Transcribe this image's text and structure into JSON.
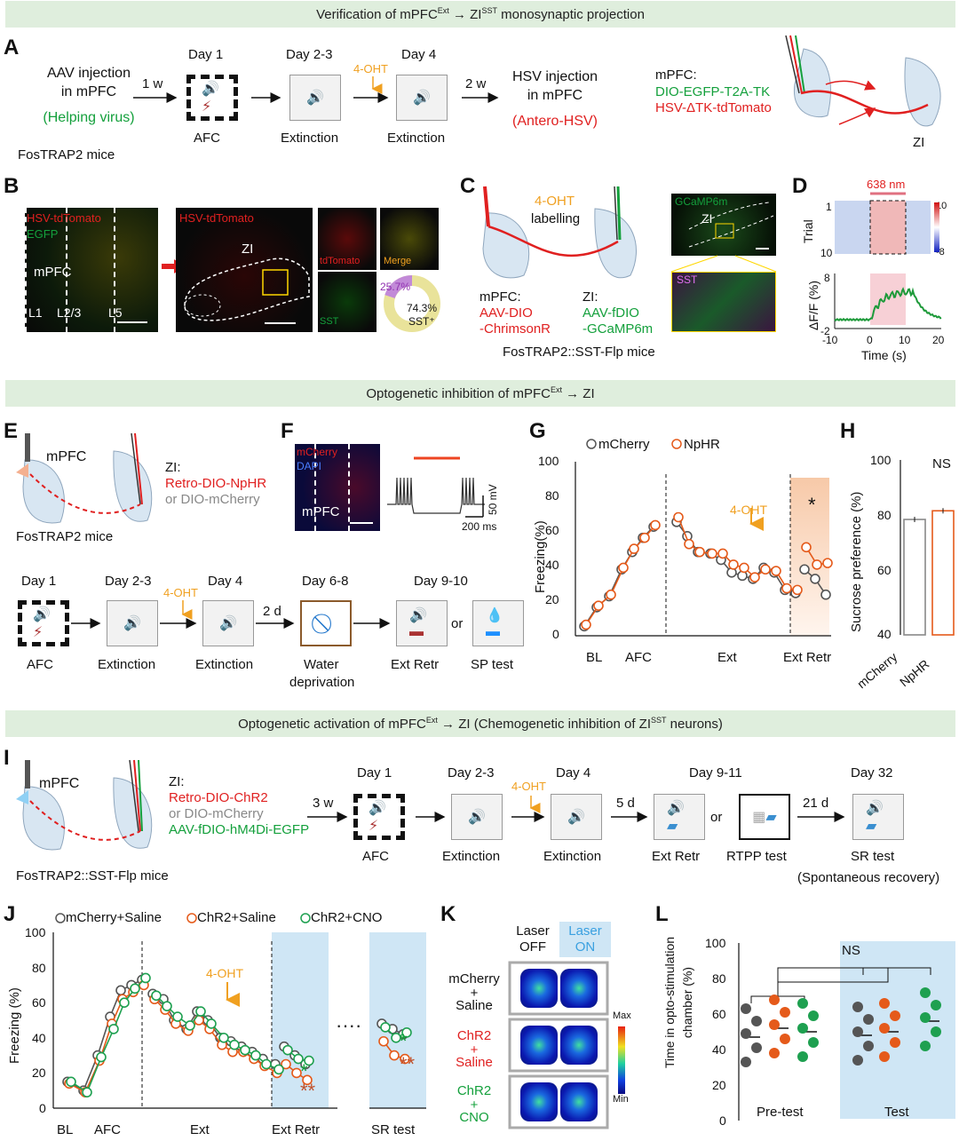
{
  "banners": {
    "top": "Verification of mPFC^Ext → ZI^SST monosynaptic projection",
    "middle": "Optogenetic inhibition of mPFC^Ext → ZI",
    "bottom": "Optogenetic activation of mPFC^Ext → ZI (Chemogenetic inhibition of ZI^SST neurons)"
  },
  "panel_letters": [
    "A",
    "B",
    "C",
    "D",
    "E",
    "F",
    "G",
    "H",
    "I",
    "J",
    "K",
    "L"
  ],
  "panelA": {
    "aav": "AAV injection",
    "in_mpfc": "in mPFC",
    "helping": "(Helping virus)",
    "mice": "FosTRAP2 mice",
    "w1": "1 w",
    "day1": "Day 1",
    "afc": "AFC",
    "day23": "Day 2-3",
    "ext1": "Extinction",
    "oht": "4-OHT",
    "day4": "Day 4",
    "ext2": "Extinction",
    "w2": "2 w",
    "hsv": "HSV injection",
    "hsv_in": "in mPFC",
    "antero": "(Antero-HSV)",
    "mpfc": "mPFC:",
    "dio": "DIO-EGFP-T2A-TK",
    "hsvtk": "HSV-ΔTK-tdTomato",
    "zi": "ZI"
  },
  "panelB": {
    "hsv_td": "HSV-tdTomato",
    "egfp": "EGFP",
    "mpfc": "mPFC",
    "l1": "L1",
    "l23": "L2/3",
    "l5": "L5",
    "hsv_td2": "HSV-tdTomato",
    "zi": "ZI",
    "tdtomato": "tdTomato",
    "merge": "Merge",
    "sst": "SST",
    "pct_a": "25.7%",
    "pct_b": "74.3%",
    "sst_plus": "SST⁺"
  },
  "panelC": {
    "oht": "4-OHT",
    "labelling": "labelling",
    "mpfc": "mPFC:",
    "aav1": "AAV-DIO",
    "aav2": "-ChrimsonR",
    "zi": "ZI:",
    "fdio1": "AAV-fDIO",
    "fdio2": "-GCaMP6m",
    "mice": "FosTRAP2::SST-Flp mice",
    "gcamp": "GCaMP6m",
    "zi2": "ZI",
    "sst": "SST"
  },
  "panelD": {
    "nm": "638 nm",
    "trial": "Trial",
    "t1": "1",
    "t10": "10",
    "cmax": "10",
    "cmin": "-8",
    "ylabel": "ΔF/F (%)",
    "y8": "8",
    "ym2": "-2",
    "xlabel": "Time (s)",
    "xticks": [
      "-10",
      "0",
      "10",
      "20"
    ]
  },
  "panelE": {
    "mpfc": "mPFC",
    "zi": "ZI:",
    "retro": "Retro-DIO-NpHR",
    "or_dio": "or DIO-mCherry",
    "mice": "FosTRAP2 mice",
    "day1": "Day 1",
    "day23": "Day 2-3",
    "day4": "Day 4",
    "day68": "Day 6-8",
    "day910": "Day 9-10",
    "oht": "4-OHT",
    "d2": "2 d",
    "afc": "AFC",
    "ext1": "Extinction",
    "ext2": "Extinction",
    "water": "Water",
    "depr": "deprivation",
    "extretr": "Ext Retr",
    "or": "or",
    "sp": "SP test"
  },
  "panelF": {
    "mcherry": "mCherry",
    "dapi": "DAPI",
    "mpfc": "mPFC",
    "mv": "50 mV",
    "ms": "200 ms"
  },
  "panelG": {
    "legend": [
      "mCherry",
      "NpHR"
    ],
    "ylabel": "Freezing(%)",
    "yticks": [
      "0",
      "20",
      "40",
      "60",
      "80",
      "100"
    ],
    "xlabels": [
      "BL",
      "AFC",
      "Ext",
      "Ext Retr"
    ],
    "oht": "4-OHT",
    "star": "*"
  },
  "panelH": {
    "ylabel": "Sucrose preference (%)",
    "yticks": [
      "40",
      "60",
      "80",
      "100"
    ],
    "ns": "NS",
    "categories": [
      "mCherry",
      "NpHR"
    ]
  },
  "panelI": {
    "mpfc": "mPFC",
    "zi": "ZI:",
    "retro": "Retro-DIO-ChR2",
    "or_dio": "or DIO-mCherry",
    "fdio": "AAV-fDIO-hM4Di-EGFP",
    "mice": "FosTRAP2::SST-Flp mice",
    "w3": "3 w",
    "day1": "Day 1",
    "day23": "Day 2-3",
    "day4": "Day 4",
    "day911": "Day 9-11",
    "day32": "Day 32",
    "oht": "4-OHT",
    "d5": "5 d",
    "d21": "21 d",
    "afc": "AFC",
    "ext1": "Extinction",
    "ext2": "Extinction",
    "extretr": "Ext Retr",
    "or": "or",
    "rtpp": "RTPP test",
    "sr": "SR test",
    "spont": "(Spontaneous recovery)"
  },
  "panelJ": {
    "legend": [
      "mCherry+Saline",
      "ChR2+Saline",
      "ChR2+CNO"
    ],
    "ylabel": "Freezing (%)",
    "yticks": [
      "0",
      "20",
      "40",
      "60",
      "80",
      "100"
    ],
    "xlabels": [
      "BL",
      "AFC",
      "Ext",
      "Ext Retr",
      "SR test"
    ],
    "oht": "4-OHT",
    "dots": "····",
    "s1": "*",
    "s2": "**"
  },
  "panelK": {
    "off1": "Laser",
    "off2": "OFF",
    "on1": "Laser",
    "on2": "ON",
    "rows": [
      [
        "mCherry",
        "+",
        "Saline"
      ],
      [
        "ChR2",
        "+",
        "Saline"
      ],
      [
        "ChR2",
        "+",
        "CNO"
      ]
    ],
    "max": "Max",
    "min": "Min"
  },
  "panelL": {
    "ylabel1": "Time  in opto-stimulation",
    "ylabel2": "chamber (%)",
    "yticks": [
      "0",
      "20",
      "40",
      "60",
      "80",
      "100"
    ],
    "ns": "NS",
    "groups": [
      "Pre-test",
      "Test"
    ]
  },
  "colors": {
    "banner": "#dfeedd",
    "red": "#e02020",
    "green": "#14a03c",
    "orange": "#f0a020",
    "blue_shade": "#cfe6f5",
    "peach": "#f7c9a8"
  },
  "chart_data": [
    {
      "type": "line",
      "title": "",
      "ylabel": "Freezing(%)",
      "ylim": [
        0,
        100
      ],
      "categories": [
        "BL",
        "AFC1",
        "AFC2",
        "AFC3",
        "AFC4",
        "AFC5",
        "AFC6",
        "Ext1",
        "Ext2",
        "Ext3",
        "Ext4",
        "Ext5",
        "Ext6",
        "Ext7",
        "Ext8",
        "Ext9",
        "Ext10",
        "Ext11",
        "Ext12",
        "Retr1",
        "Retr2",
        "Retr3"
      ],
      "series": [
        {
          "name": "mCherry",
          "values": [
            6,
            18,
            25,
            42,
            53,
            62,
            69,
            72,
            63,
            53,
            52,
            48,
            40,
            38,
            36,
            43,
            40,
            29,
            27,
            42,
            36,
            26
          ]
        },
        {
          "name": "NpHR",
          "values": [
            7,
            19,
            26,
            43,
            55,
            62,
            70,
            75,
            58,
            53,
            52,
            52,
            45,
            43,
            37,
            42,
            41,
            30,
            29,
            56,
            45,
            46
          ]
        }
      ]
    },
    {
      "type": "bar",
      "title": "",
      "ylabel": "Sucrose preference (%)",
      "ylim": [
        40,
        100
      ],
      "categories": [
        "mCherry",
        "NpHR"
      ],
      "values": [
        80,
        83
      ]
    },
    {
      "type": "line",
      "title": "",
      "ylabel": "Freezing (%)",
      "ylim": [
        0,
        100
      ],
      "series": [
        {
          "name": "mCherry+Saline",
          "values": [
            15,
            10,
            30,
            52,
            67,
            70,
            73,
            65,
            62,
            50,
            45,
            55,
            50,
            40,
            38,
            35,
            32,
            28,
            25,
            35,
            30,
            25,
            48,
            45,
            42
          ]
        },
        {
          "name": "ChR2+Saline",
          "values": [
            14,
            9,
            27,
            48,
            62,
            66,
            70,
            62,
            56,
            48,
            44,
            50,
            45,
            36,
            32,
            32,
            28,
            24,
            20,
            25,
            20,
            16,
            38,
            30,
            28
          ]
        },
        {
          "name": "ChR2+CNO",
          "values": [
            15,
            9,
            29,
            45,
            60,
            68,
            74,
            64,
            58,
            52,
            47,
            55,
            48,
            40,
            36,
            33,
            30,
            25,
            22,
            33,
            28,
            27,
            46,
            40,
            43
          ]
        }
      ]
    },
    {
      "type": "scatter",
      "title": "",
      "ylabel": "Time in opto-stimulation chamber (%)",
      "ylim": [
        0,
        100
      ],
      "categories": [
        "Pre-test mCherry+Saline",
        "Pre-test ChR2+Saline",
        "Pre-test ChR2+CNO",
        "Test mCherry+Saline",
        "Test ChR2+Saline",
        "Test ChR2+CNO"
      ],
      "values": [
        47,
        52,
        50,
        48,
        50,
        56
      ]
    }
  ]
}
